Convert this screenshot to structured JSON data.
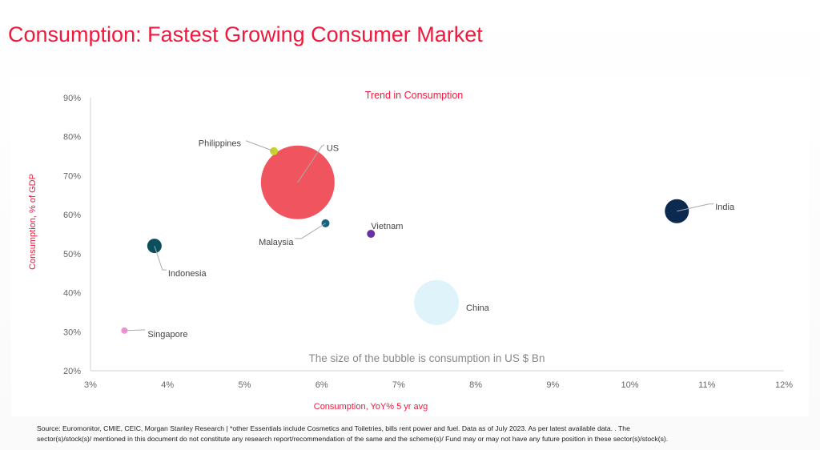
{
  "header": {
    "title": "Consumption: Fastest Growing Consumer Market"
  },
  "chart_data": {
    "type": "scatter",
    "subtype": "bubble",
    "title": "Trend in Consumption",
    "xlabel": "Consumption, YoY% 5 yr avg",
    "ylabel": "Consumption, % of GDP",
    "xlim": [
      3,
      12
    ],
    "ylim": [
      20,
      90
    ],
    "xticks": [
      "3%",
      "4%",
      "5%",
      "6%",
      "7%",
      "8%",
      "9%",
      "10%",
      "11%",
      "12%"
    ],
    "yticks": [
      "20%",
      "30%",
      "40%",
      "50%",
      "60%",
      "70%",
      "80%",
      "90%"
    ],
    "grid": false,
    "annotation": "The size of the bubble is consumption in US $ Bn",
    "title_color": "#f0193c",
    "points": [
      {
        "label": "US",
        "x": 5.69,
        "y": 68.3,
        "relative_size": 2116,
        "color": "#f0555f"
      },
      {
        "label": "Philippines",
        "x": 5.38,
        "y": 76.3,
        "relative_size": 25,
        "color": "#c8d42a"
      },
      {
        "label": "Malaysia",
        "x": 6.05,
        "y": 57.8,
        "relative_size": 25,
        "color": "#1a6080"
      },
      {
        "label": "Vietnam",
        "x": 6.64,
        "y": 55.1,
        "relative_size": 25,
        "color": "#6a2fa0"
      },
      {
        "label": "Indonesia",
        "x": 3.83,
        "y": 52.0,
        "relative_size": 81,
        "color": "#0d4e5c"
      },
      {
        "label": "Singapore",
        "x": 3.44,
        "y": 30.3,
        "relative_size": 16,
        "color": "#f08fd8"
      },
      {
        "label": "China",
        "x": 7.49,
        "y": 37.5,
        "relative_size": 784,
        "color": "#dff3fb"
      },
      {
        "label": "India",
        "x": 10.61,
        "y": 60.9,
        "relative_size": 225,
        "color": "#0c2a50"
      }
    ]
  },
  "footer": {
    "line1": "Source: Euromonitor, CMIE, CEIC, Morgan Stanley Research | *other Essentials include Cosmetics and Toiletries, bills rent power and fuel.  Data as of July 2023. As per latest available data. . The",
    "line2": "sector(s)/stock(s)/ mentioned in this document do not constitute any research report/recommendation of the same and the scheme(s)/ Fund may or may not have any future position in these sector(s)/stock(s)."
  }
}
